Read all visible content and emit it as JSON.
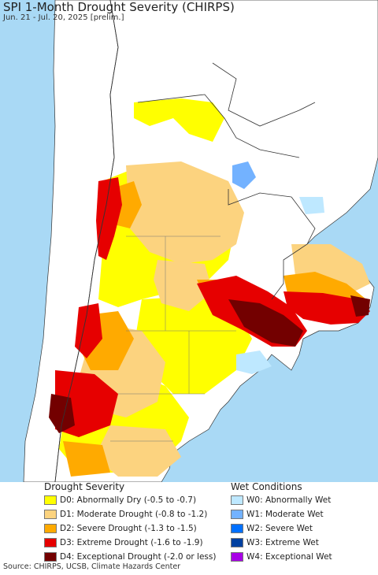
{
  "header": {
    "title": "SPI 1-Month Drought Severity (CHIRPS)",
    "subtitle": "Jun. 21 - Jul. 20, 2025 [prelim.]"
  },
  "map": {
    "ocean_color": "#a9d9f5",
    "land_color": "#ffffff",
    "border_color": "#333333"
  },
  "legend": {
    "drought": {
      "title": "Drought Severity",
      "items": [
        {
          "label": "D0: Abnormally Dry (-0.5 to -0.7)",
          "color": "#ffff00"
        },
        {
          "label": "D1: Moderate Drought (-0.8 to -1.2)",
          "color": "#fcd37f"
        },
        {
          "label": "D2: Severe Drought (-1.3 to -1.5)",
          "color": "#ffaa00"
        },
        {
          "label": "D3: Extreme Drought (-1.6 to -1.9)",
          "color": "#e60000"
        },
        {
          "label": "D4: Exceptional Drought (-2.0 or less)",
          "color": "#730000"
        }
      ]
    },
    "wet": {
      "title": "Wet Conditions",
      "items": [
        {
          "label": "W0: Abnormally Wet",
          "color": "#bee8ff"
        },
        {
          "label": "W1: Moderate Wet",
          "color": "#73b2ff"
        },
        {
          "label": "W2: Severe Wet",
          "color": "#0070ff"
        },
        {
          "label": "W3: Extreme Wet",
          "color": "#0040a0"
        },
        {
          "label": "W4: Exceptional Wet",
          "color": "#a800e6"
        }
      ]
    }
  },
  "footer": {
    "source": "Source: CHIRPS, UCSB, Climate Hazards Center"
  }
}
